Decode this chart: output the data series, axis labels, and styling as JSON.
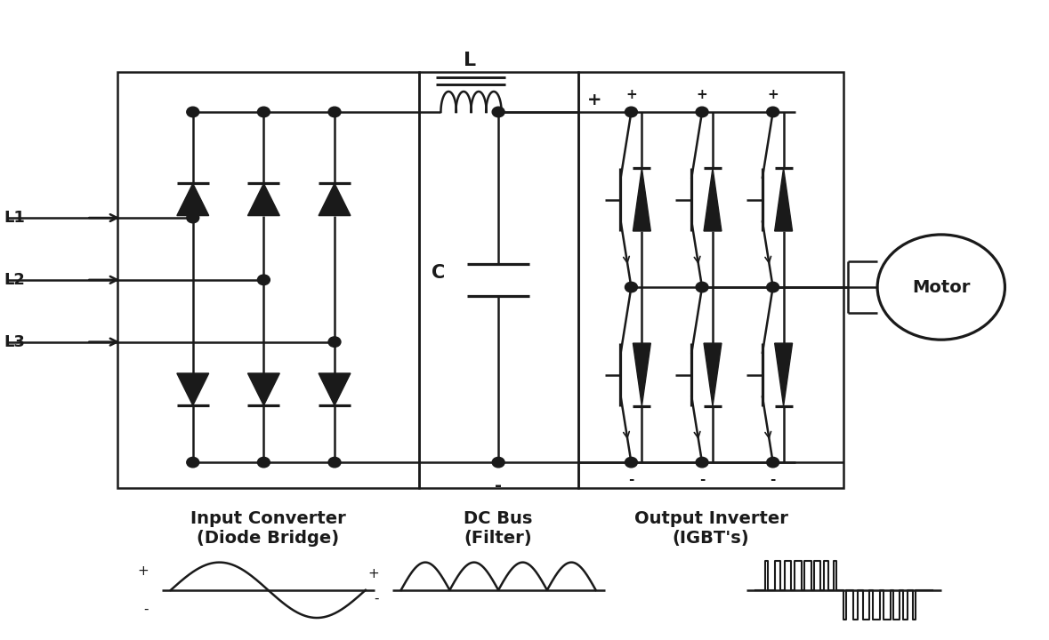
{
  "bg_color": "#ffffff",
  "line_color": "#1a1a1a",
  "line_width": 1.8,
  "labels": {
    "L1": "L1",
    "L2": "L2",
    "L3": "L3",
    "L_label": "L",
    "C_label": "C",
    "plus_top": "+",
    "minus_bot": "-",
    "motor": "Motor",
    "input_converter": "Input Converter\n(Diode Bridge)",
    "dc_bus": "DC Bus\n(Filter)",
    "output_inverter": "Output Inverter\n(IGBT's)"
  },
  "figsize": [
    11.79,
    7.2
  ],
  "dpi": 100
}
